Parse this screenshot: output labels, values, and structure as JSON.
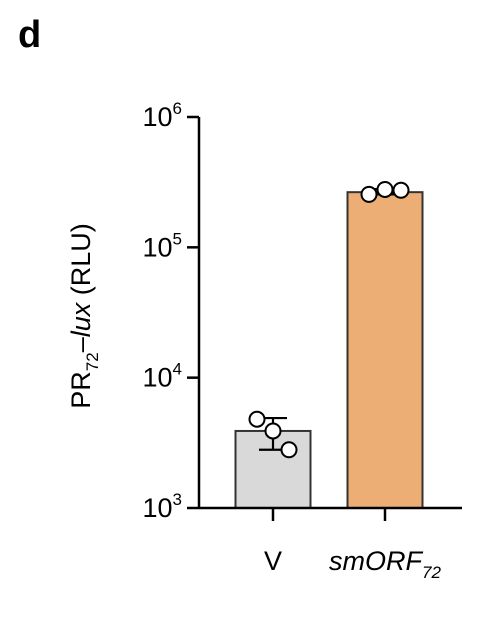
{
  "panel_label": "d",
  "colors": {
    "bar_V": "#d9d9d9",
    "bar_smORF": "#edae75",
    "axis": "#000000",
    "bar_edge": "#333333"
  },
  "chart_data": {
    "type": "bar",
    "title": "",
    "ylabel": {
      "prefix": "PR",
      "sub": "72",
      "dash": "–",
      "gene": "lux",
      "suffix": " (RLU)"
    },
    "yscale": "log",
    "ylim": [
      1000,
      1000000
    ],
    "yticks": [
      {
        "base": "10",
        "exp": "3",
        "value": 1000
      },
      {
        "base": "10",
        "exp": "4",
        "value": 10000
      },
      {
        "base": "10",
        "exp": "5",
        "value": 100000
      },
      {
        "base": "10",
        "exp": "6",
        "value": 1000000
      }
    ],
    "categories": [
      {
        "label": "V",
        "sub": "",
        "italic": false
      },
      {
        "label": "smORF",
        "sub": "72",
        "italic": true
      }
    ],
    "values": [
      3900,
      265000
    ],
    "error_low": [
      2800,
      255000
    ],
    "error_high": [
      4900,
      280000
    ],
    "points": [
      [
        4800,
        3900,
        2800
      ],
      [
        255000,
        278000,
        274000
      ]
    ]
  }
}
